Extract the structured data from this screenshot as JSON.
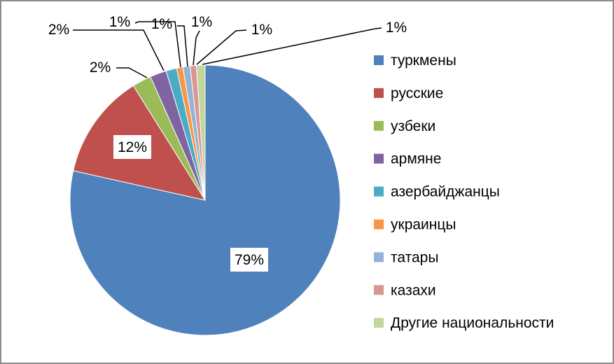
{
  "chart_data": {
    "type": "pie",
    "categories": [
      "туркмены",
      "русские",
      "узбеки",
      "армяне",
      "азербайджанцы",
      "украинцы",
      "татары",
      "казахи",
      "Другие национальности"
    ],
    "values": [
      79,
      12,
      2,
      2,
      1,
      1,
      1,
      1,
      1
    ],
    "labels": [
      "79%",
      "12%",
      "2%",
      "2%",
      "1%",
      "1%",
      "1%",
      "1%",
      "1%"
    ],
    "colors": [
      "#4F81BD",
      "#C0504D",
      "#9BBB59",
      "#8064A2",
      "#4BACC6",
      "#F79646",
      "#95B3D7",
      "#D99694",
      "#C3D69B"
    ],
    "legend_position": "right",
    "title": ""
  }
}
